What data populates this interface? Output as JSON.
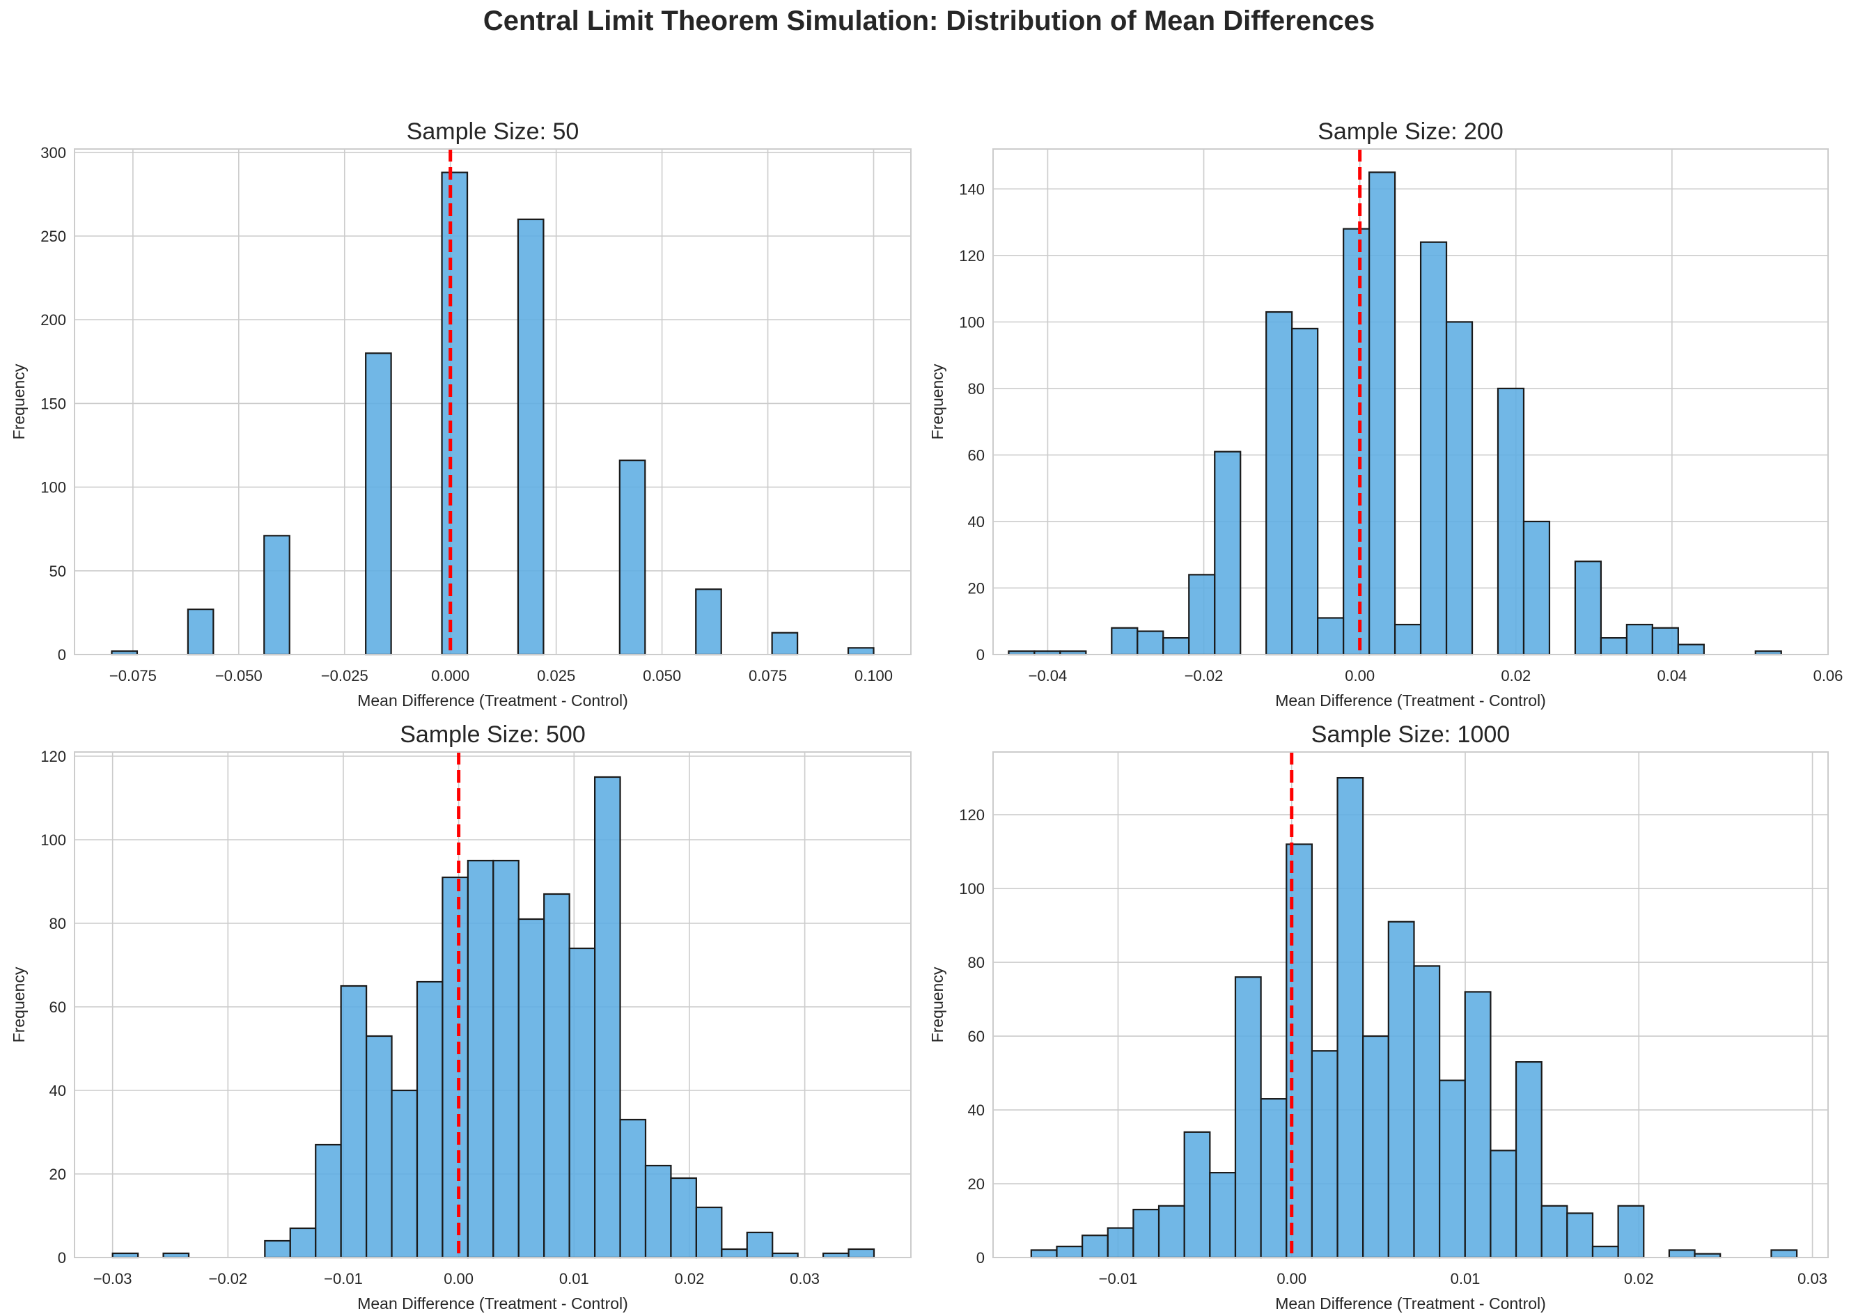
{
  "figure": {
    "suptitle": "Central Limit Theorem Simulation: Distribution of Mean Differences",
    "bar_color": "#5DADE2",
    "edge_color": "#1a1a1a",
    "zero_line_color": "#ff0000",
    "grid_color": "#cccccc"
  },
  "chart_data": [
    {
      "type": "bar",
      "title": "Sample Size: 50",
      "xlabel": "Mean Difference (Treatment - Control)",
      "ylabel": "Frequency",
      "xlim": [
        -0.0888,
        0.1088
      ],
      "ylim": [
        0,
        302
      ],
      "xticks": [
        -0.075,
        -0.05,
        -0.025,
        0.0,
        0.025,
        0.05,
        0.075,
        0.1
      ],
      "xtick_labels": [
        "−0.075",
        "−0.050",
        "−0.025",
        "0.000",
        "0.025",
        "0.050",
        "0.075",
        "0.100"
      ],
      "yticks": [
        0,
        50,
        100,
        150,
        200,
        250,
        300
      ],
      "ytick_labels": [
        "0",
        "50",
        "100",
        "150",
        "200",
        "250",
        "300"
      ],
      "grid": true,
      "reference_line_x": 0,
      "bins": {
        "start": -0.08,
        "width": 0.006,
        "count": 30
      },
      "values": [
        2,
        0,
        0,
        27,
        0,
        0,
        71,
        0,
        0,
        0,
        180,
        0,
        0,
        288,
        0,
        0,
        260,
        0,
        0,
        0,
        116,
        0,
        0,
        39,
        0,
        0,
        13,
        0,
        0,
        4
      ]
    },
    {
      "type": "bar",
      "title": "Sample Size: 200",
      "xlabel": "Mean Difference (Treatment - Control)",
      "ylabel": "Frequency",
      "xlim": [
        -0.047,
        0.06
      ],
      "ylim": [
        0,
        152
      ],
      "xticks": [
        -0.04,
        -0.02,
        0.0,
        0.02,
        0.04,
        0.06
      ],
      "xtick_labels": [
        "−0.04",
        "−0.02",
        "0.00",
        "0.02",
        "0.04",
        "0.06"
      ],
      "yticks": [
        0,
        20,
        40,
        60,
        80,
        100,
        120,
        140
      ],
      "ytick_labels": [
        "0",
        "20",
        "40",
        "60",
        "80",
        "100",
        "120",
        "140"
      ],
      "grid": true,
      "reference_line_x": 0,
      "bins": {
        "start": -0.045,
        "width": 0.0033,
        "count": 30
      },
      "values": [
        1,
        1,
        1,
        0,
        8,
        7,
        5,
        24,
        61,
        0,
        103,
        98,
        11,
        128,
        145,
        9,
        124,
        100,
        0,
        80,
        40,
        0,
        28,
        5,
        9,
        8,
        3,
        0,
        0,
        1
      ]
    },
    {
      "type": "bar",
      "title": "Sample Size: 500",
      "xlabel": "Mean Difference (Treatment - Control)",
      "ylabel": "Frequency",
      "xlim": [
        -0.0333,
        0.0392
      ],
      "ylim": [
        0,
        121
      ],
      "xticks": [
        -0.03,
        -0.02,
        -0.01,
        0.0,
        0.01,
        0.02,
        0.03
      ],
      "xtick_labels": [
        "−0.03",
        "−0.02",
        "−0.01",
        "0.00",
        "0.01",
        "0.02",
        "0.03"
      ],
      "yticks": [
        0,
        20,
        40,
        60,
        80,
        100,
        120
      ],
      "ytick_labels": [
        "0",
        "20",
        "40",
        "60",
        "80",
        "100",
        "120"
      ],
      "grid": true,
      "reference_line_x": 0,
      "bins": {
        "start": -0.03,
        "width": 0.0022,
        "count": 30
      },
      "values": [
        1,
        0,
        1,
        0,
        0,
        0,
        4,
        7,
        27,
        65,
        53,
        40,
        66,
        91,
        95,
        95,
        81,
        87,
        74,
        115,
        33,
        22,
        19,
        12,
        2,
        6,
        1,
        0,
        1,
        2
      ]
    },
    {
      "type": "bar",
      "title": "Sample Size: 1000",
      "xlabel": "Mean Difference (Treatment - Control)",
      "ylabel": "Frequency",
      "xlim": [
        -0.0172,
        0.0309
      ],
      "ylim": [
        0,
        137
      ],
      "xticks": [
        -0.01,
        0.0,
        0.01,
        0.02,
        0.03
      ],
      "xtick_labels": [
        "−0.01",
        "0.00",
        "0.01",
        "0.02",
        "0.03"
      ],
      "yticks": [
        0,
        20,
        40,
        60,
        80,
        100,
        120
      ],
      "ytick_labels": [
        "0",
        "20",
        "40",
        "60",
        "80",
        "100",
        "120"
      ],
      "grid": true,
      "reference_line_x": 0,
      "bins": {
        "start": -0.015,
        "width": 0.00147,
        "count": 30
      },
      "values": [
        2,
        3,
        6,
        8,
        13,
        14,
        34,
        23,
        76,
        43,
        112,
        56,
        130,
        60,
        91,
        79,
        48,
        72,
        29,
        53,
        14,
        12,
        3,
        14,
        0,
        2,
        1,
        0,
        0,
        2
      ]
    }
  ]
}
